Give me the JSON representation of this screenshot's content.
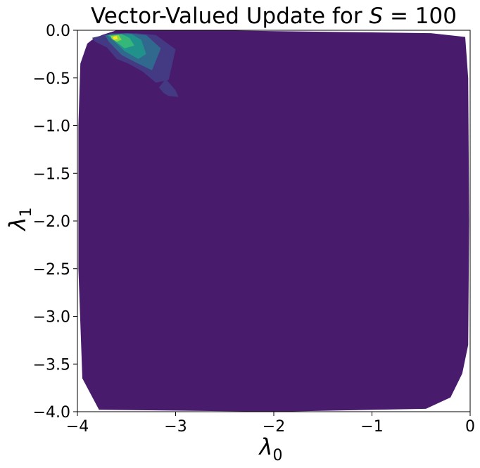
{
  "chart_data": {
    "type": "contour",
    "title": {
      "prefix": "Vector-Valued Update for ",
      "var": "S",
      "suffix": " = 100"
    },
    "xlabel": {
      "symbol": "λ",
      "sub": "0"
    },
    "ylabel": {
      "symbol": "λ",
      "sub": "1"
    },
    "xlim": [
      -4,
      0
    ],
    "ylim": [
      -4,
      0
    ],
    "xticks": [
      {
        "value": -4,
        "label": "−4"
      },
      {
        "value": -3,
        "label": "−3"
      },
      {
        "value": -2,
        "label": "−2"
      },
      {
        "value": -1,
        "label": "−1"
      },
      {
        "value": 0,
        "label": "0"
      }
    ],
    "yticks": [
      {
        "value": 0.0,
        "label": "0.0"
      },
      {
        "value": -0.5,
        "label": "−0.5"
      },
      {
        "value": -1.0,
        "label": "−1.0"
      },
      {
        "value": -1.5,
        "label": "−1.5"
      },
      {
        "value": -2.0,
        "label": "−2.0"
      },
      {
        "value": -2.5,
        "label": "−2.5"
      },
      {
        "value": -3.0,
        "label": "−3.0"
      },
      {
        "value": -3.5,
        "label": "−3.5"
      },
      {
        "value": -4.0,
        "label": "−4.0"
      }
    ],
    "colormap": "viridis",
    "levels": [
      {
        "level": 1,
        "color": "#481b6d",
        "polygons": [
          [
            [
              -3.6,
              0.0
            ],
            [
              -2.65,
              0.0
            ],
            [
              -0.4,
              -0.03
            ],
            [
              -0.05,
              -0.07
            ],
            [
              -0.02,
              -0.5
            ],
            [
              -0.01,
              -2.0
            ],
            [
              -0.02,
              -3.3
            ],
            [
              -0.08,
              -3.6
            ],
            [
              -0.2,
              -3.85
            ],
            [
              -0.45,
              -3.97
            ],
            [
              -2.0,
              -4.0
            ],
            [
              -3.78,
              -3.98
            ],
            [
              -3.95,
              -3.65
            ],
            [
              -3.99,
              -2.5
            ],
            [
              -3.99,
              -1.0
            ],
            [
              -3.97,
              -0.35
            ],
            [
              -3.9,
              -0.14
            ],
            [
              -3.85,
              -0.1
            ],
            [
              -3.75,
              -0.05
            ]
          ]
        ]
      },
      {
        "level": 2,
        "color": "#443983",
        "polygons": [
          [
            [
              -3.85,
              -0.08
            ],
            [
              -3.65,
              -0.03
            ],
            [
              -3.4,
              -0.03
            ],
            [
              -3.2,
              -0.05
            ],
            [
              -3.0,
              -0.2
            ],
            [
              -3.07,
              -0.52
            ],
            [
              -3.2,
              -0.55
            ],
            [
              -3.34,
              -0.43
            ],
            [
              -3.48,
              -0.35
            ],
            [
              -3.6,
              -0.3
            ],
            [
              -3.7,
              -0.18
            ],
            [
              -3.82,
              -0.12
            ]
          ],
          [
            [
              -3.17,
              -0.6
            ],
            [
              -3.1,
              -0.51
            ],
            [
              -3.0,
              -0.63
            ],
            [
              -2.97,
              -0.7
            ],
            [
              -3.07,
              -0.69
            ],
            [
              -3.12,
              -0.66
            ]
          ]
        ]
      },
      {
        "level": 3,
        "color": "#31688e",
        "polygons": [
          [
            [
              -3.72,
              -0.05
            ],
            [
              -3.5,
              -0.03
            ],
            [
              -3.3,
              -0.05
            ],
            [
              -3.15,
              -0.19
            ],
            [
              -3.24,
              -0.42
            ],
            [
              -3.4,
              -0.34
            ],
            [
              -3.55,
              -0.26
            ],
            [
              -3.68,
              -0.12
            ]
          ]
        ]
      },
      {
        "level": 4,
        "color": "#21918c",
        "polygons": [
          [
            [
              -3.7,
              -0.05
            ],
            [
              -3.45,
              -0.04
            ],
            [
              -3.35,
              -0.1
            ],
            [
              -3.3,
              -0.25
            ],
            [
              -3.38,
              -0.3
            ],
            [
              -3.52,
              -0.22
            ],
            [
              -3.62,
              -0.12
            ]
          ]
        ]
      },
      {
        "level": 5,
        "color": "#35b779",
        "polygons": [
          [
            [
              -3.68,
              -0.05
            ],
            [
              -3.55,
              -0.04
            ],
            [
              -3.47,
              -0.08
            ],
            [
              -3.42,
              -0.16
            ],
            [
              -3.52,
              -0.19
            ],
            [
              -3.62,
              -0.11
            ]
          ]
        ]
      },
      {
        "level": 6,
        "color": "#90d743",
        "polygons": [
          [
            [
              -3.66,
              -0.06
            ],
            [
              -3.58,
              -0.05
            ],
            [
              -3.55,
              -0.1
            ],
            [
              -3.6,
              -0.12
            ],
            [
              -3.65,
              -0.09
            ]
          ]
        ]
      },
      {
        "level": 7,
        "color": "#fde725",
        "polygons": [
          [
            [
              -3.64,
              -0.07
            ],
            [
              -3.6,
              -0.06
            ],
            [
              -3.59,
              -0.09
            ],
            [
              -3.63,
              -0.1
            ]
          ]
        ]
      }
    ],
    "grid": false,
    "legend": "none"
  }
}
